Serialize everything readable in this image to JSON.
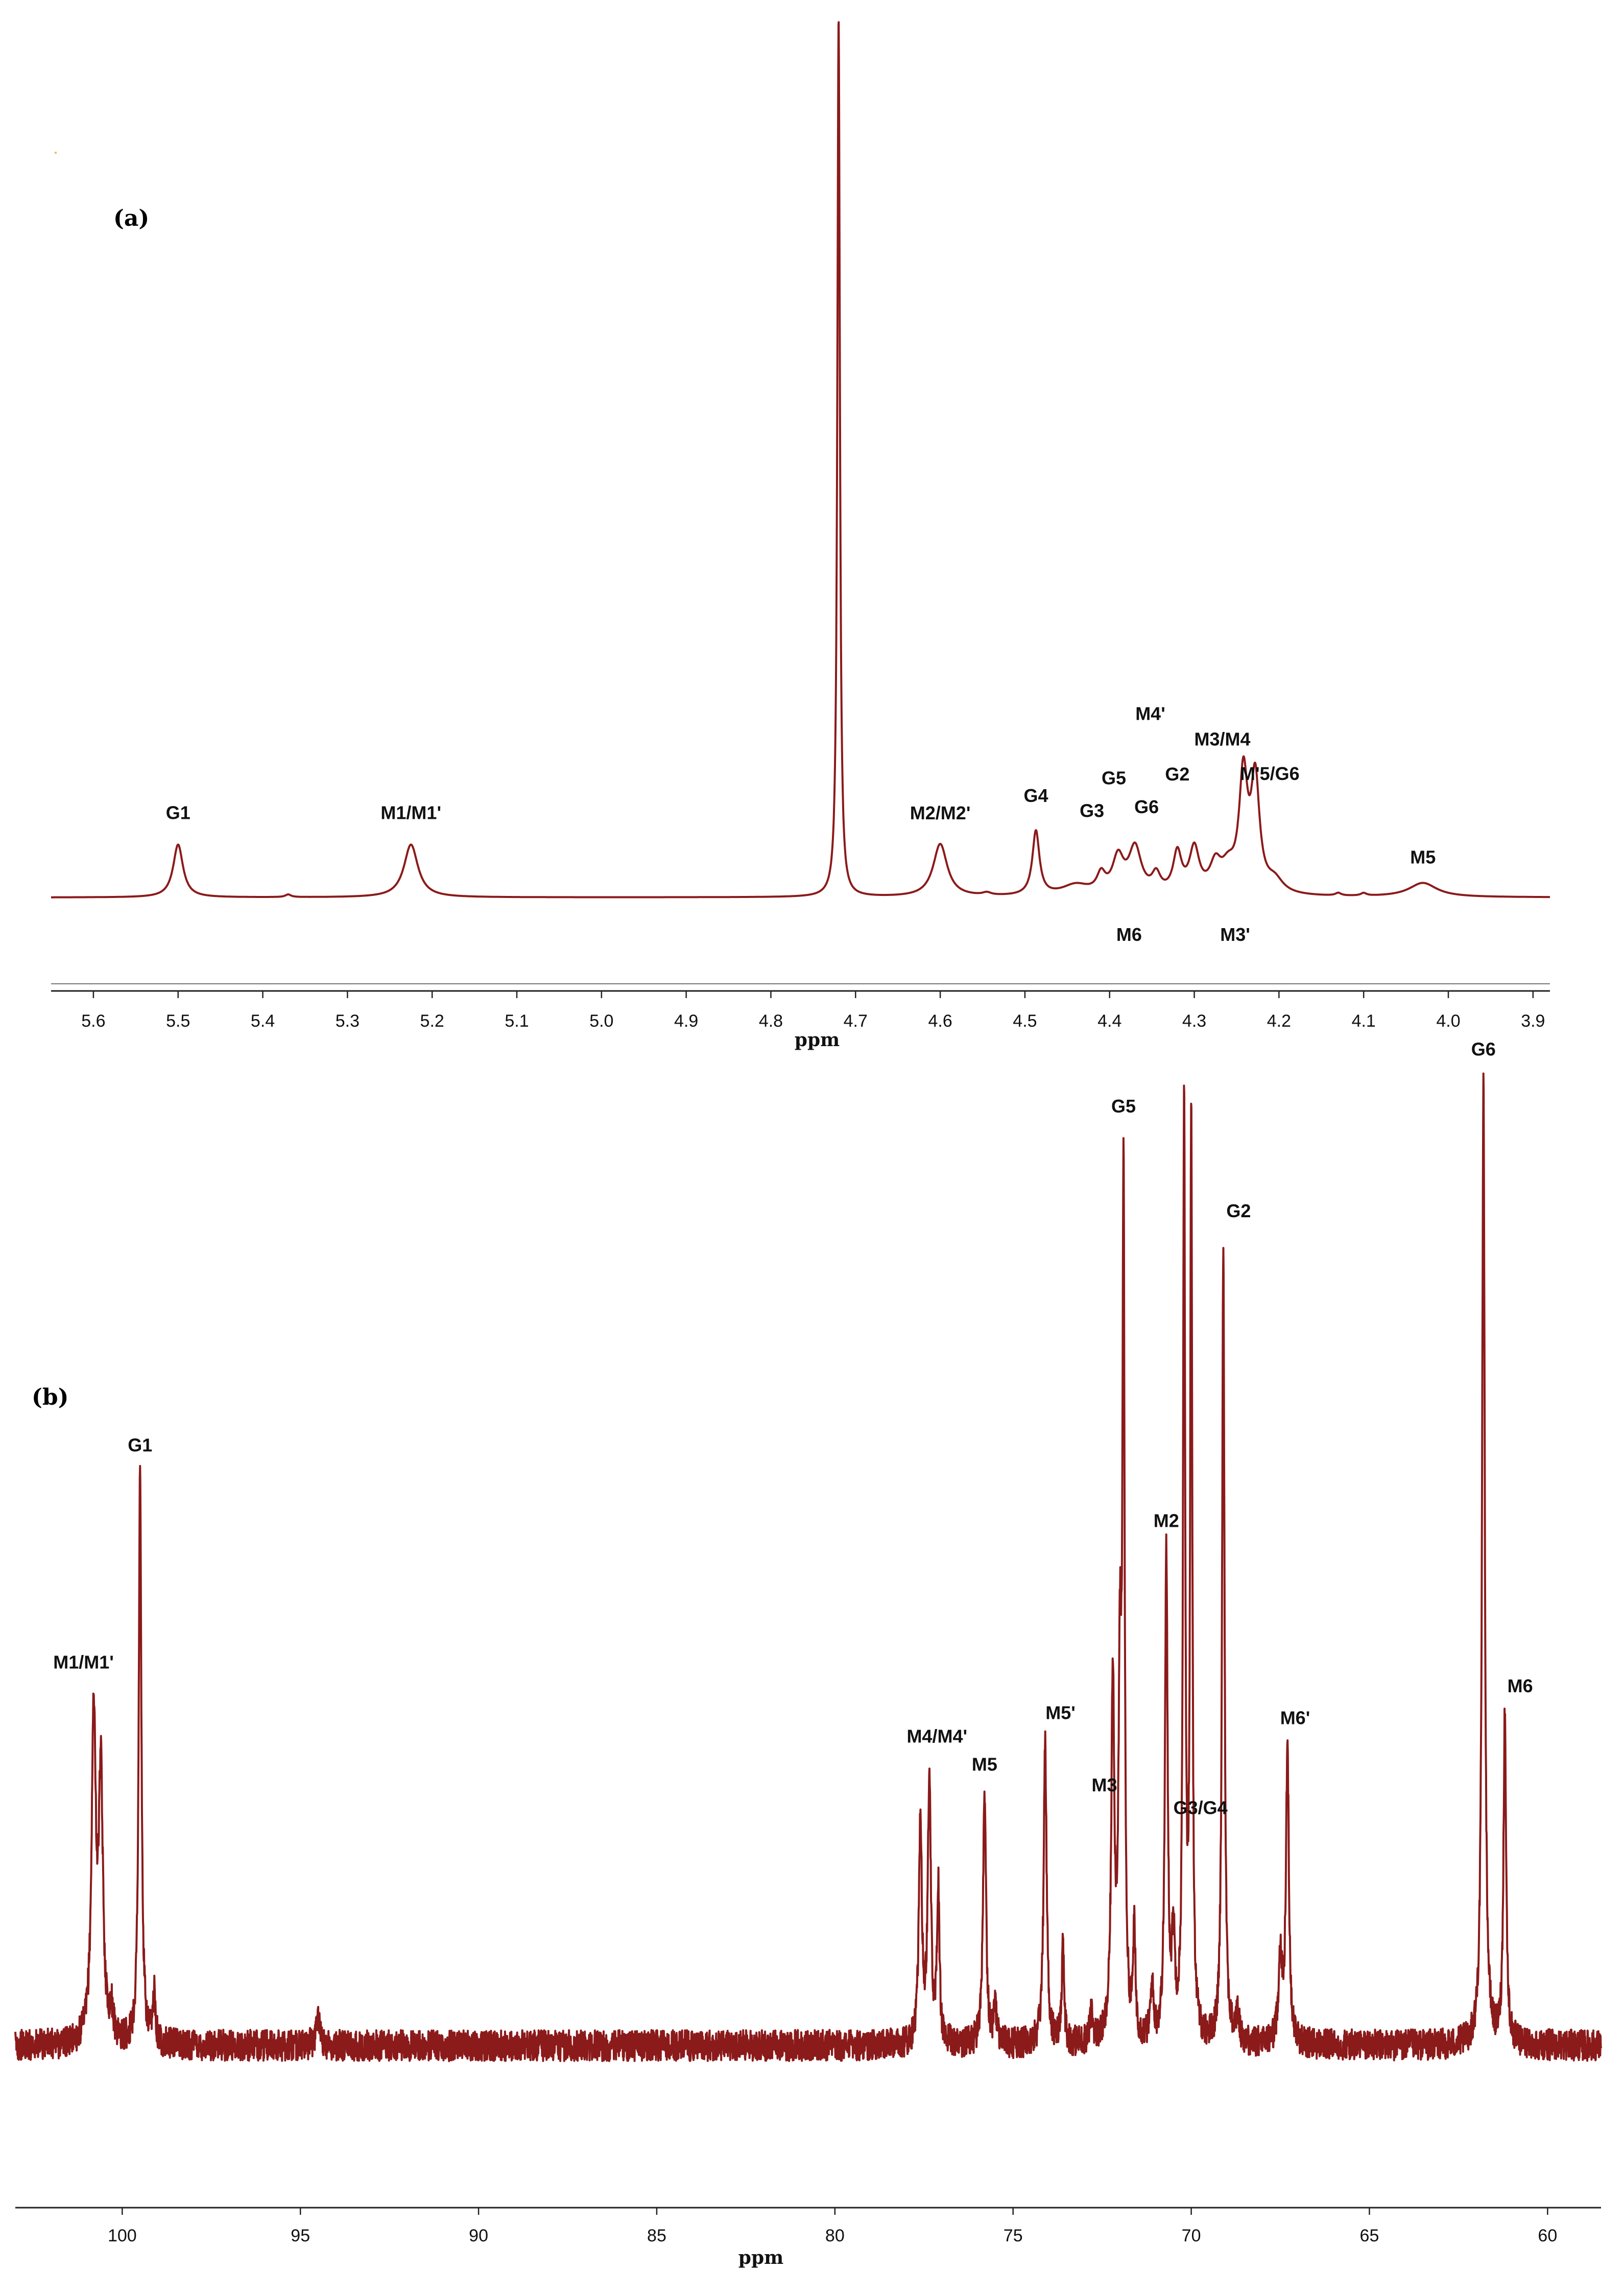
{
  "chart_data": [
    {
      "type": "line",
      "panel_label": "(a)",
      "title": "",
      "xlabel": "ppm",
      "ylabel": "",
      "xlim": [
        5.65,
        3.88
      ],
      "x_reversed": true,
      "grid": false,
      "ticks": [
        "5.6",
        "5.5",
        "5.4",
        "5.3",
        "5.2",
        "5.1",
        "5.0",
        "4.9",
        "4.8",
        "4.7",
        "4.6",
        "4.5",
        "4.4",
        "4.3",
        "4.2",
        "4.1",
        "4.0",
        "3.9"
      ],
      "tick_values": [
        5.6,
        5.5,
        5.4,
        5.3,
        5.2,
        5.1,
        5.0,
        4.9,
        4.8,
        4.7,
        4.6,
        4.5,
        4.4,
        4.3,
        4.2,
        4.1,
        4.0,
        3.9
      ],
      "baseline": 0,
      "ylim": [
        0,
        100
      ],
      "series": [
        {
          "peaks": [
            {
              "x": 5.5,
              "y": 6.0,
              "w": 0.007
            },
            {
              "x": 5.37,
              "y": 0.3,
              "w": 0.004
            },
            {
              "x": 5.225,
              "y": 6.0,
              "w": 0.01
            },
            {
              "x": 4.72,
              "y": 100,
              "w": 0.0018
            },
            {
              "x": 4.6,
              "y": 6.0,
              "w": 0.01
            },
            {
              "x": 4.545,
              "y": 0.3,
              "w": 0.006
            },
            {
              "x": 4.487,
              "y": 7.3,
              "w": 0.005
            },
            {
              "x": 4.44,
              "y": 1.2,
              "w": 0.02
            },
            {
              "x": 4.41,
              "y": 2.0,
              "w": 0.006
            },
            {
              "x": 4.39,
              "y": 4.0,
              "w": 0.008
            },
            {
              "x": 4.37,
              "y": 5.2,
              "w": 0.009
            },
            {
              "x": 4.345,
              "y": 2.0,
              "w": 0.006
            },
            {
              "x": 4.32,
              "y": 4.5,
              "w": 0.006
            },
            {
              "x": 4.3,
              "y": 5.0,
              "w": 0.007
            },
            {
              "x": 4.275,
              "y": 3.0,
              "w": 0.008
            },
            {
              "x": 4.26,
              "y": 2.5,
              "w": 0.01
            },
            {
              "x": 4.242,
              "y": 13.0,
              "w": 0.006
            },
            {
              "x": 4.228,
              "y": 12.5,
              "w": 0.006
            },
            {
              "x": 4.205,
              "y": 1.5,
              "w": 0.012
            },
            {
              "x": 4.13,
              "y": 0.3,
              "w": 0.004
            },
            {
              "x": 4.1,
              "y": 0.3,
              "w": 0.004
            },
            {
              "x": 4.03,
              "y": 1.6,
              "w": 0.02
            }
          ]
        }
      ],
      "annotations": [
        {
          "text": "G1",
          "x": 5.5
        },
        {
          "text": "M1/M1'",
          "x": 5.225
        },
        {
          "text": "M2/M2'",
          "x": 4.6
        },
        {
          "text": "G4",
          "x": 4.487
        },
        {
          "text": "G3",
          "x": 4.41
        },
        {
          "text": "G5",
          "x": 4.395
        },
        {
          "text": "M4'",
          "x": 4.37
        },
        {
          "text": "M6",
          "x": 4.377
        },
        {
          "text": "G2",
          "x": 4.32
        },
        {
          "text": "M3/M4",
          "x": 4.3
        },
        {
          "text": "G6",
          "x": 4.284
        },
        {
          "text": "M3'",
          "x": 4.3
        },
        {
          "text": "M'5/G6",
          "x": 4.235
        },
        {
          "text": "M5",
          "x": 4.03
        }
      ]
    },
    {
      "type": "line",
      "panel_label": "(b)",
      "title": "",
      "xlabel": "ppm",
      "ylabel": "",
      "xlim": [
        103,
        58.5
      ],
      "x_reversed": true,
      "grid": false,
      "ticks": [
        "100",
        "95",
        "90",
        "85",
        "80",
        "75",
        "70",
        "65",
        "60"
      ],
      "tick_values": [
        100,
        95,
        90,
        85,
        80,
        75,
        70,
        65,
        60
      ],
      "baseline": 0,
      "ylim": [
        0,
        100
      ],
      "series": [
        {
          "peaks": [
            {
              "x": 100.8,
              "y": 38,
              "w": 0.07
            },
            {
              "x": 100.6,
              "y": 30,
              "w": 0.07
            },
            {
              "x": 100.3,
              "y": 3,
              "w": 0.06
            },
            {
              "x": 99.5,
              "y": 66,
              "w": 0.045
            },
            {
              "x": 99.1,
              "y": 6,
              "w": 0.04
            },
            {
              "x": 94.5,
              "y": 4,
              "w": 0.06
            },
            {
              "x": 77.6,
              "y": 26,
              "w": 0.05
            },
            {
              "x": 77.35,
              "y": 31,
              "w": 0.05
            },
            {
              "x": 77.1,
              "y": 18,
              "w": 0.04
            },
            {
              "x": 75.8,
              "y": 29,
              "w": 0.05
            },
            {
              "x": 75.5,
              "y": 4,
              "w": 0.05
            },
            {
              "x": 74.1,
              "y": 35,
              "w": 0.05
            },
            {
              "x": 73.6,
              "y": 11,
              "w": 0.04
            },
            {
              "x": 72.8,
              "y": 3,
              "w": 0.06
            },
            {
              "x": 72.2,
              "y": 42,
              "w": 0.05
            },
            {
              "x": 72.0,
              "y": 40,
              "w": 0.05
            },
            {
              "x": 71.9,
              "y": 96,
              "w": 0.035
            },
            {
              "x": 71.6,
              "y": 12,
              "w": 0.04
            },
            {
              "x": 71.1,
              "y": 6,
              "w": 0.05
            },
            {
              "x": 70.7,
              "y": 56,
              "w": 0.045
            },
            {
              "x": 70.5,
              "y": 11,
              "w": 0.05
            },
            {
              "x": 70.2,
              "y": 108,
              "w": 0.035
            },
            {
              "x": 70.0,
              "y": 105,
              "w": 0.035
            },
            {
              "x": 69.1,
              "y": 93,
              "w": 0.04
            },
            {
              "x": 68.7,
              "y": 3,
              "w": 0.06
            },
            {
              "x": 67.5,
              "y": 10,
              "w": 0.06
            },
            {
              "x": 67.3,
              "y": 34,
              "w": 0.05
            },
            {
              "x": 61.8,
              "y": 112,
              "w": 0.045
            },
            {
              "x": 61.2,
              "y": 38,
              "w": 0.045
            }
          ],
          "noise_amplitude": 1.8
        }
      ],
      "annotations": [
        {
          "text": "M1/M1'",
          "x": 100.8
        },
        {
          "text": "G1",
          "x": 99.5
        },
        {
          "text": "M4/M4'",
          "x": 77.35
        },
        {
          "text": "M5",
          "x": 75.8
        },
        {
          "text": "M5'",
          "x": 74.1
        },
        {
          "text": "M3",
          "x": 72.15
        },
        {
          "text": "G5",
          "x": 71.9
        },
        {
          "text": "M2",
          "x": 70.7
        },
        {
          "text": "G3/G4",
          "x": 70.1
        },
        {
          "text": "G2",
          "x": 69.1
        },
        {
          "text": "M6'",
          "x": 67.3
        },
        {
          "text": "G6",
          "x": 61.8
        },
        {
          "text": "M6",
          "x": 61.2
        }
      ]
    }
  ]
}
